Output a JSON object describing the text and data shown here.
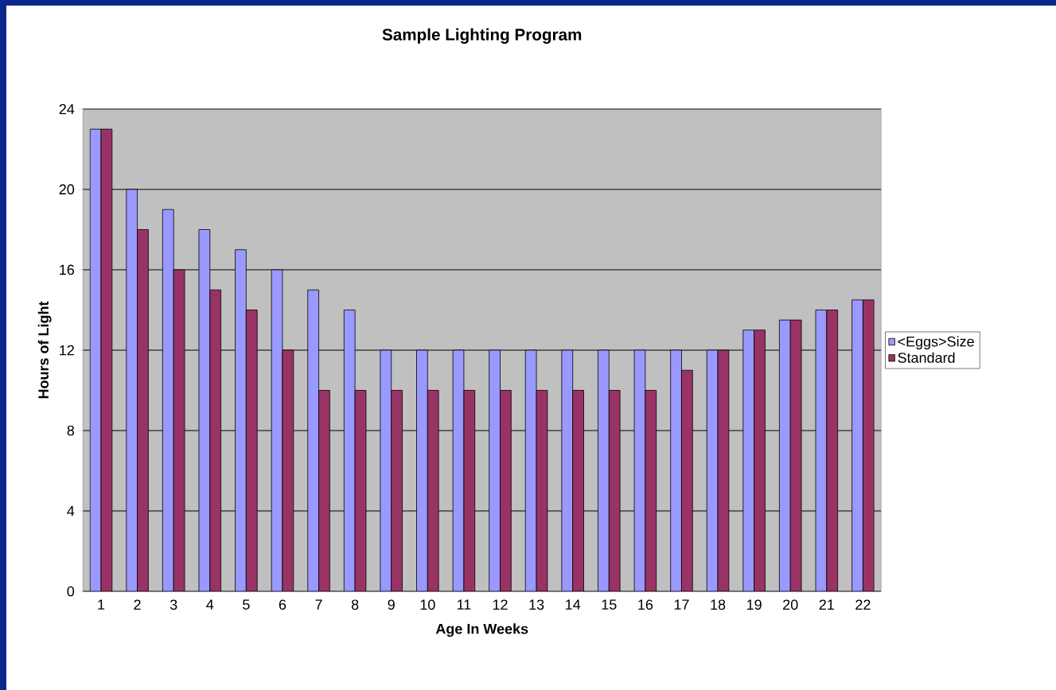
{
  "chart_data": {
    "type": "bar",
    "title": "Sample Lighting Program",
    "xlabel": "Age In Weeks",
    "ylabel": "Hours of Light",
    "categories": [
      "1",
      "2",
      "3",
      "4",
      "5",
      "6",
      "7",
      "8",
      "9",
      "10",
      "11",
      "12",
      "13",
      "14",
      "15",
      "16",
      "17",
      "18",
      "19",
      "20",
      "21",
      "22"
    ],
    "series": [
      {
        "name": "<Eggs>Size",
        "color": "#9999ff",
        "values": [
          23,
          20,
          19,
          18,
          17,
          16,
          15,
          14,
          12,
          12,
          12,
          12,
          12,
          12,
          12,
          12,
          12,
          12,
          13,
          13.5,
          14,
          14.5
        ]
      },
      {
        "name": "Standard",
        "color": "#993366",
        "values": [
          23,
          18,
          16,
          15,
          14,
          12,
          10,
          10,
          10,
          10,
          10,
          10,
          10,
          10,
          10,
          10,
          11,
          12,
          13,
          13.5,
          14,
          14.5
        ]
      }
    ],
    "ylim": [
      0,
      24
    ],
    "yticks": [
      0,
      4,
      8,
      12,
      16,
      20,
      24
    ],
    "grid": "y",
    "legend": "right"
  }
}
